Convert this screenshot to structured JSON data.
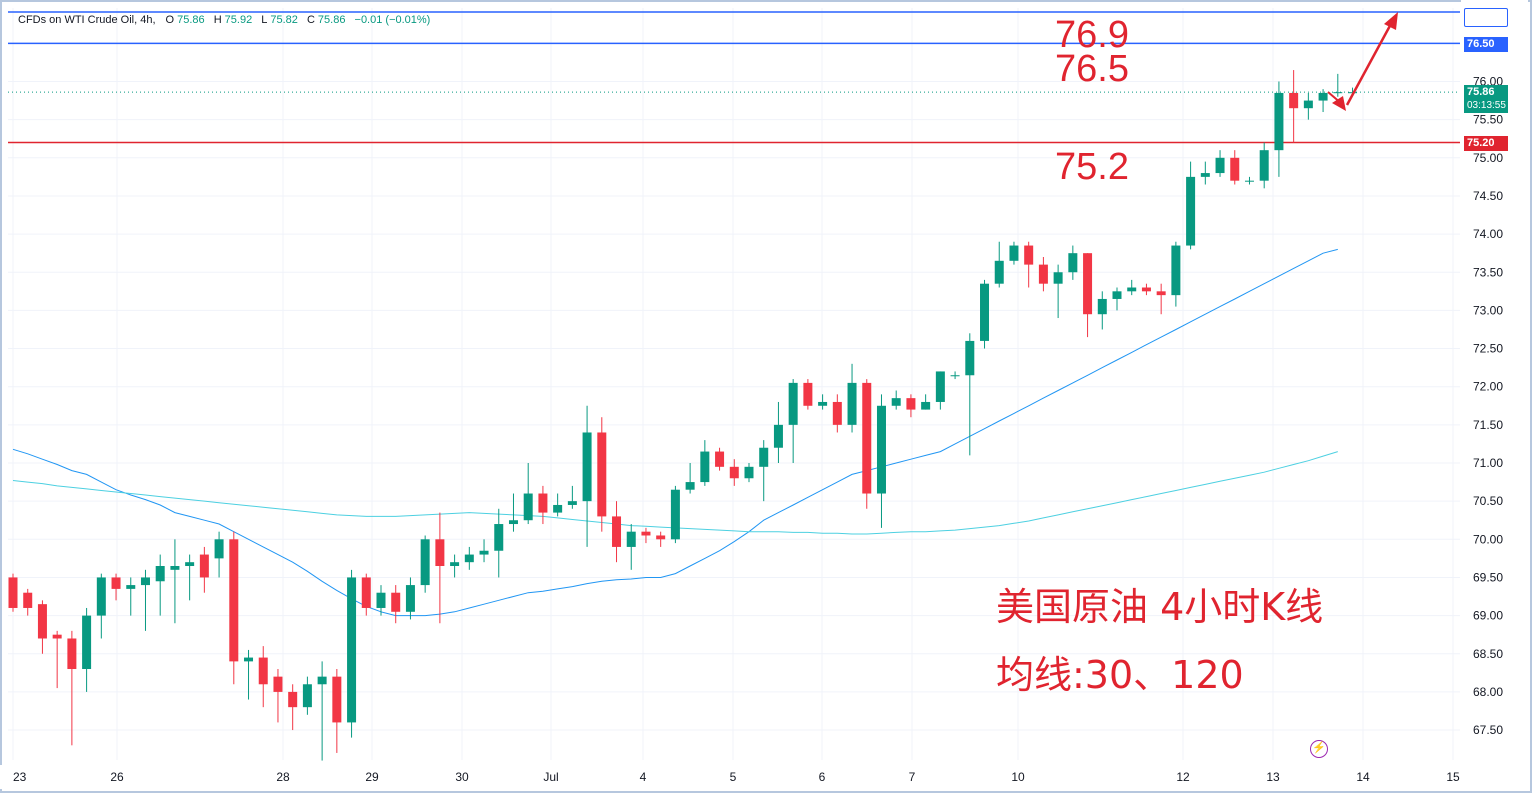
{
  "header": {
    "symbol": "CFDs on WTI Crude Oil, 4h,",
    "open_label": "O",
    "open": "75.86",
    "high_label": "H",
    "high": "75.92",
    "low_label": "L",
    "low": "75.82",
    "close_label": "C",
    "close": "75.86",
    "change": "−0.01 (−0.01%)"
  },
  "price_tags": {
    "top_line": "76.50",
    "last": "75.86",
    "countdown": "03:13:55",
    "support": "75.20"
  },
  "annotations": {
    "target_high": "76.9",
    "target_mid": "76.5",
    "support": "75.2",
    "note_title": "美国原油 4小时K线",
    "note_ma": "均线:30、120"
  },
  "colors": {
    "up": "#089981",
    "down": "#f23645",
    "ma30": "#2196f3",
    "ma120": "#4dd0e1",
    "blue_line": "#2962ff",
    "red_line": "#e0242f",
    "annotation": "#e0242f"
  },
  "chart_data": {
    "type": "candlestick",
    "y_ticks": [
      67.5,
      68.0,
      68.5,
      69.0,
      69.5,
      70.0,
      70.5,
      71.0,
      71.5,
      72.0,
      72.5,
      73.0,
      73.5,
      74.0,
      74.5,
      75.0,
      75.5,
      76.0
    ],
    "ylim": [
      67.2,
      76.9
    ],
    "x_labels": [
      "23",
      "26",
      "28",
      "29",
      "30",
      "Jul",
      "4",
      "5",
      "6",
      "7",
      "10",
      "12",
      "13",
      "14",
      "15"
    ],
    "horizontal_lines": [
      {
        "value": 76.9,
        "color": "blue"
      },
      {
        "value": 76.5,
        "color": "blue"
      },
      {
        "value": 75.2,
        "color": "red"
      },
      {
        "value": 75.86,
        "color": "green-dotted"
      }
    ],
    "candles": [
      [
        69.5,
        69.1,
        69.55,
        69.05
      ],
      [
        69.3,
        69.1,
        69.35,
        69.0
      ],
      [
        69.15,
        68.7,
        69.2,
        68.5
      ],
      [
        68.75,
        68.7,
        68.8,
        68.05
      ],
      [
        68.7,
        68.3,
        68.8,
        67.3
      ],
      [
        68.3,
        69.0,
        69.1,
        68.0
      ],
      [
        69.0,
        69.5,
        69.55,
        68.7
      ],
      [
        69.5,
        69.35,
        69.55,
        69.2
      ],
      [
        69.35,
        69.4,
        69.5,
        69.0
      ],
      [
        69.4,
        69.5,
        69.6,
        68.8
      ],
      [
        69.45,
        69.65,
        69.8,
        69.0
      ],
      [
        69.6,
        69.65,
        70.0,
        68.9
      ],
      [
        69.65,
        69.7,
        69.8,
        69.2
      ],
      [
        69.8,
        69.5,
        69.9,
        69.3
      ],
      [
        69.75,
        70.0,
        70.1,
        69.5
      ],
      [
        70.0,
        68.4,
        70.1,
        68.1
      ],
      [
        68.4,
        68.45,
        68.55,
        67.9
      ],
      [
        68.45,
        68.1,
        68.6,
        67.8
      ],
      [
        68.2,
        68.0,
        68.3,
        67.6
      ],
      [
        68.0,
        67.8,
        68.1,
        67.5
      ],
      [
        67.8,
        68.1,
        68.2,
        67.7
      ],
      [
        68.1,
        68.2,
        68.4,
        67.1
      ],
      [
        68.2,
        67.6,
        68.3,
        67.2
      ],
      [
        67.6,
        69.5,
        69.6,
        67.4
      ],
      [
        69.5,
        69.1,
        69.55,
        69.0
      ],
      [
        69.1,
        69.3,
        69.4,
        69.0
      ],
      [
        69.3,
        69.05,
        69.4,
        68.9
      ],
      [
        69.05,
        69.4,
        69.5,
        68.95
      ],
      [
        69.4,
        70.0,
        70.05,
        69.3
      ],
      [
        70.0,
        69.65,
        70.35,
        68.9
      ],
      [
        69.65,
        69.7,
        69.8,
        69.5
      ],
      [
        69.7,
        69.8,
        69.9,
        69.6
      ],
      [
        69.8,
        69.85,
        70.0,
        69.7
      ],
      [
        69.85,
        70.2,
        70.4,
        69.5
      ],
      [
        70.2,
        70.25,
        70.6,
        70.1
      ],
      [
        70.25,
        70.6,
        71.0,
        70.2
      ],
      [
        70.6,
        70.35,
        70.7,
        70.2
      ],
      [
        70.35,
        70.45,
        70.6,
        70.3
      ],
      [
        70.45,
        70.5,
        70.7,
        70.4
      ],
      [
        70.5,
        71.4,
        71.75,
        69.9
      ],
      [
        71.4,
        70.3,
        71.6,
        70.1
      ],
      [
        70.3,
        69.9,
        70.5,
        69.7
      ],
      [
        69.9,
        70.1,
        70.2,
        69.6
      ],
      [
        70.1,
        70.05,
        70.15,
        69.95
      ],
      [
        70.05,
        70.0,
        70.1,
        69.9
      ],
      [
        70.0,
        70.65,
        70.7,
        69.95
      ],
      [
        70.65,
        70.75,
        71.0,
        70.6
      ],
      [
        70.75,
        71.15,
        71.3,
        70.7
      ],
      [
        71.15,
        70.95,
        71.2,
        70.9
      ],
      [
        70.95,
        70.8,
        71.05,
        70.7
      ],
      [
        70.8,
        70.95,
        71.0,
        70.75
      ],
      [
        70.95,
        71.2,
        71.3,
        70.5
      ],
      [
        71.2,
        71.5,
        71.8,
        71.0
      ],
      [
        71.5,
        72.05,
        72.1,
        71.0
      ],
      [
        72.05,
        71.75,
        72.1,
        71.7
      ],
      [
        71.75,
        71.8,
        71.9,
        71.7
      ],
      [
        71.8,
        71.5,
        71.9,
        71.4
      ],
      [
        71.5,
        72.05,
        72.3,
        71.4
      ],
      [
        72.05,
        70.6,
        72.1,
        70.4
      ],
      [
        70.6,
        71.75,
        71.9,
        70.15
      ],
      [
        71.75,
        71.85,
        71.95,
        71.7
      ],
      [
        71.85,
        71.7,
        71.9,
        71.6
      ],
      [
        71.7,
        71.8,
        71.9,
        71.7
      ],
      [
        71.8,
        72.2,
        72.2,
        71.7
      ],
      [
        72.15,
        72.15,
        72.2,
        72.1
      ],
      [
        72.15,
        72.6,
        72.7,
        71.1
      ],
      [
        72.6,
        73.35,
        73.4,
        72.5
      ],
      [
        73.35,
        73.65,
        73.9,
        73.3
      ],
      [
        73.65,
        73.85,
        73.9,
        73.6
      ],
      [
        73.85,
        73.6,
        73.9,
        73.3
      ],
      [
        73.6,
        73.35,
        73.7,
        73.25
      ],
      [
        73.35,
        73.5,
        73.6,
        72.9
      ],
      [
        73.5,
        73.75,
        73.85,
        73.4
      ],
      [
        73.75,
        72.95,
        73.75,
        72.65
      ],
      [
        72.95,
        73.15,
        73.25,
        72.75
      ],
      [
        73.15,
        73.25,
        73.3,
        73.0
      ],
      [
        73.25,
        73.3,
        73.4,
        73.2
      ],
      [
        73.3,
        73.25,
        73.35,
        73.2
      ],
      [
        73.25,
        73.2,
        73.35,
        72.95
      ],
      [
        73.2,
        73.85,
        73.9,
        73.05
      ],
      [
        73.85,
        74.75,
        74.95,
        73.8
      ],
      [
        74.75,
        74.8,
        74.95,
        74.65
      ],
      [
        74.8,
        75.0,
        75.1,
        74.75
      ],
      [
        75.0,
        74.7,
        75.1,
        74.65
      ],
      [
        74.7,
        74.7,
        74.75,
        74.65
      ],
      [
        74.7,
        75.1,
        75.2,
        74.6
      ],
      [
        75.1,
        75.85,
        76.0,
        74.75
      ],
      [
        75.85,
        75.65,
        76.15,
        75.2
      ],
      [
        75.65,
        75.75,
        75.85,
        75.5
      ],
      [
        75.75,
        75.85,
        75.9,
        75.6
      ],
      [
        75.85,
        75.86,
        76.1,
        75.8
      ],
      [
        75.86,
        75.86,
        75.92,
        75.82
      ]
    ],
    "ma30": [
      [
        71.18
      ],
      [
        71.12
      ],
      [
        71.05
      ],
      [
        70.98
      ],
      [
        70.9
      ],
      [
        70.85
      ],
      [
        70.75
      ],
      [
        70.65
      ],
      [
        70.58
      ],
      [
        70.52
      ],
      [
        70.45
      ],
      [
        70.35
      ],
      [
        70.3
      ],
      [
        70.25
      ],
      [
        70.2
      ],
      [
        70.1
      ],
      [
        70.0
      ],
      [
        69.9
      ],
      [
        69.8
      ],
      [
        69.7
      ],
      [
        69.58
      ],
      [
        69.45
      ],
      [
        69.33
      ],
      [
        69.22
      ],
      [
        69.12
      ],
      [
        69.05
      ],
      [
        69.0
      ],
      [
        69.0
      ],
      [
        69.0
      ],
      [
        69.02
      ],
      [
        69.05
      ],
      [
        69.1
      ],
      [
        69.15
      ],
      [
        69.2
      ],
      [
        69.25
      ],
      [
        69.3
      ],
      [
        69.32
      ],
      [
        69.35
      ],
      [
        69.38
      ],
      [
        69.42
      ],
      [
        69.45
      ],
      [
        69.47
      ],
      [
        69.48
      ],
      [
        69.5
      ],
      [
        69.5
      ],
      [
        69.55
      ],
      [
        69.65
      ],
      [
        69.75
      ],
      [
        69.85
      ],
      [
        69.97
      ],
      [
        70.1
      ],
      [
        70.25
      ],
      [
        70.35
      ],
      [
        70.45
      ],
      [
        70.55
      ],
      [
        70.65
      ],
      [
        70.75
      ],
      [
        70.85
      ],
      [
        70.9
      ],
      [
        70.95
      ],
      [
        71.0
      ],
      [
        71.05
      ],
      [
        71.1
      ],
      [
        71.15
      ],
      [
        71.25
      ],
      [
        71.35
      ],
      [
        71.45
      ],
      [
        71.55
      ],
      [
        71.65
      ],
      [
        71.75
      ],
      [
        71.85
      ],
      [
        71.95
      ],
      [
        72.05
      ],
      [
        72.15
      ],
      [
        72.25
      ],
      [
        72.35
      ],
      [
        72.45
      ],
      [
        72.55
      ],
      [
        72.65
      ],
      [
        72.75
      ],
      [
        72.85
      ],
      [
        72.95
      ],
      [
        73.05
      ],
      [
        73.15
      ],
      [
        73.25
      ],
      [
        73.35
      ],
      [
        73.45
      ],
      [
        73.55
      ],
      [
        73.65
      ],
      [
        73.75
      ],
      [
        73.8
      ]
    ],
    "ma120": [
      [
        70.77
      ],
      [
        70.75
      ],
      [
        70.73
      ],
      [
        70.7
      ],
      [
        70.68
      ],
      [
        70.66
      ],
      [
        70.64
      ],
      [
        70.62
      ],
      [
        70.6
      ],
      [
        70.58
      ],
      [
        70.56
      ],
      [
        70.54
      ],
      [
        70.52
      ],
      [
        70.5
      ],
      [
        70.48
      ],
      [
        70.46
      ],
      [
        70.44
      ],
      [
        70.42
      ],
      [
        70.4
      ],
      [
        70.38
      ],
      [
        70.36
      ],
      [
        70.34
      ],
      [
        70.32
      ],
      [
        70.31
      ],
      [
        70.3
      ],
      [
        70.3
      ],
      [
        70.3
      ],
      [
        70.31
      ],
      [
        70.32
      ],
      [
        70.33
      ],
      [
        70.34
      ],
      [
        70.35
      ],
      [
        70.34
      ],
      [
        70.33
      ],
      [
        70.32
      ],
      [
        70.31
      ],
      [
        70.3
      ],
      [
        70.28
      ],
      [
        70.26
      ],
      [
        70.24
      ],
      [
        70.22
      ],
      [
        70.2
      ],
      [
        70.18
      ],
      [
        70.17
      ],
      [
        70.16
      ],
      [
        70.15
      ],
      [
        70.14
      ],
      [
        70.13
      ],
      [
        70.12
      ],
      [
        70.11
      ],
      [
        70.1
      ],
      [
        70.1
      ],
      [
        70.1
      ],
      [
        70.09
      ],
      [
        70.09
      ],
      [
        70.08
      ],
      [
        70.08
      ],
      [
        70.07
      ],
      [
        70.07
      ],
      [
        70.08
      ],
      [
        70.09
      ],
      [
        70.1
      ],
      [
        70.1
      ],
      [
        70.11
      ],
      [
        70.12
      ],
      [
        70.14
      ],
      [
        70.16
      ],
      [
        70.18
      ],
      [
        70.21
      ],
      [
        70.24
      ],
      [
        70.28
      ],
      [
        70.32
      ],
      [
        70.36
      ],
      [
        70.4
      ],
      [
        70.44
      ],
      [
        70.48
      ],
      [
        70.52
      ],
      [
        70.56
      ],
      [
        70.6
      ],
      [
        70.64
      ],
      [
        70.68
      ],
      [
        70.72
      ],
      [
        70.76
      ],
      [
        70.8
      ],
      [
        70.84
      ],
      [
        70.88
      ],
      [
        70.93
      ],
      [
        70.98
      ],
      [
        71.03
      ],
      [
        71.09
      ],
      [
        71.15
      ]
    ]
  }
}
